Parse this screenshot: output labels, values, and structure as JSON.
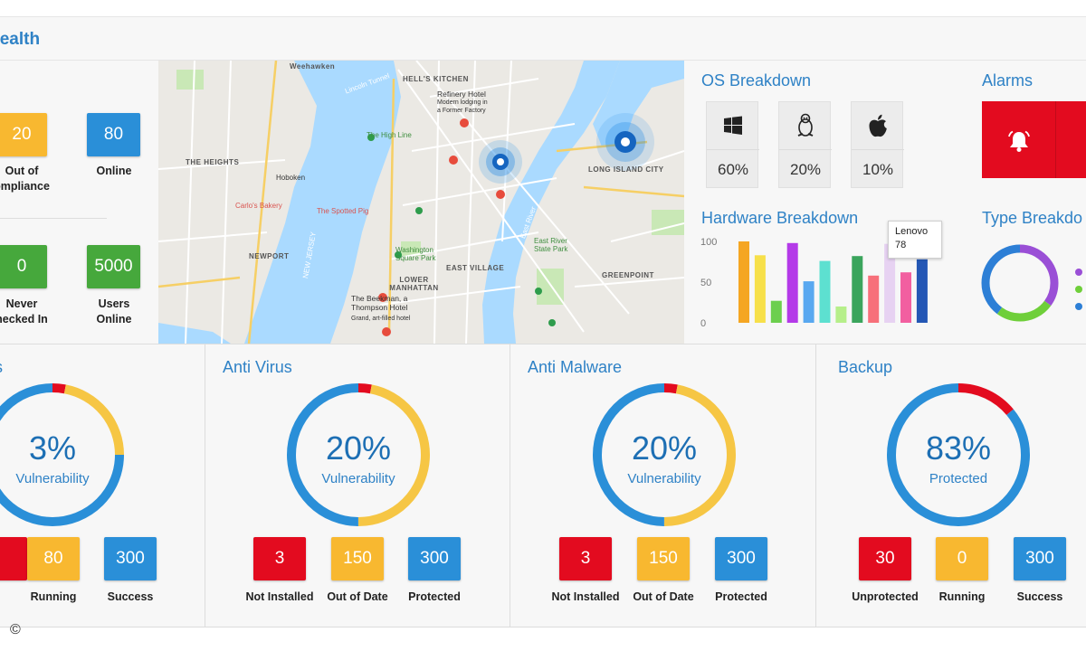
{
  "header": {
    "title": "Health"
  },
  "status": {
    "out_of_compliance": {
      "value": "20",
      "label_line1": "Out of",
      "label_line2": "ompliance"
    },
    "online": {
      "value": "80",
      "label": "Online"
    },
    "never_checked_in": {
      "value": "0",
      "label_line1": "Never",
      "label_line2": "hecked In"
    },
    "users_online": {
      "value": "5000",
      "label_line1": "Users",
      "label_line2": "Online"
    }
  },
  "map": {
    "labels": {
      "weehawken": "Weehawken",
      "hells_kitchen": "HELL'S KITCHEN",
      "refinery_hotel": "Refinery Hotel",
      "refinery_sub1": "Modern lodging in",
      "refinery_sub2": "a Former Factory",
      "the_heights": "THE HEIGHTS",
      "hoboken": "Hoboken",
      "the_high_line": "The High Line",
      "carlos_bakery": "Carlo's Bakery",
      "the_spotted_pig": "The Spotted Pig",
      "long_island_city": "LONG ISLAND CITY",
      "newport": "NEWPORT",
      "washington_square": "Washington Square Park",
      "east_village": "EAST VILLAGE",
      "state_park": "East River State Park",
      "greenpoint": "GREENPOINT",
      "lower_manhattan": "LOWER MANHATTAN",
      "the_beekman": "The Beekman, a Thompson Hotel",
      "beekman_sub": "Grand, art-filled hotel",
      "new_jersey": "NEW JERSEY",
      "lincoln_tunnel": "Lincoln Tunnel",
      "east_river": "East River"
    }
  },
  "os_breakdown": {
    "title": "OS Breakdown",
    "items": [
      {
        "icon": "windows-icon",
        "percent": "60%"
      },
      {
        "icon": "linux-icon",
        "percent": "20%"
      },
      {
        "icon": "apple-icon",
        "percent": "10%"
      }
    ]
  },
  "alarms": {
    "title": "Alarms",
    "icon": "bell-icon"
  },
  "hardware_breakdown": {
    "title": "Hardware Breakdown",
    "tooltip": {
      "name": "Lenovo",
      "value": "78"
    }
  },
  "type_breakdown": {
    "title": "Type Breakdo"
  },
  "chart_data": [
    {
      "type": "bar",
      "title": "Hardware Breakdown",
      "ylim": [
        0,
        100
      ],
      "yticks": [
        "100",
        "50",
        "0"
      ],
      "values": [
        100,
        83,
        27,
        98,
        51,
        76,
        20,
        82,
        58,
        97,
        62,
        78
      ],
      "colors": [
        "#f5a623",
        "#f7e04a",
        "#6ccf4e",
        "#b43ae8",
        "#59a8f0",
        "#5de0d0",
        "#b6ef8a",
        "#3ba55d",
        "#f7707a",
        "#e7d2f2",
        "#f25fa0",
        "#2457b5"
      ]
    },
    {
      "type": "pie",
      "title": "Type Breakdown",
      "values": [
        35,
        25,
        40
      ],
      "colors": [
        "#9a4fd6",
        "#6fcf3a",
        "#2d7fd6"
      ]
    }
  ],
  "panels": [
    {
      "title": "s",
      "percent": "3%",
      "subtitle": "Vulnerability",
      "tiles": [
        {
          "value": "",
          "label": "",
          "color": "red"
        },
        {
          "value": "80",
          "label": "Running",
          "color": "yellow"
        },
        {
          "value": "300",
          "label": "Success",
          "color": "blue"
        }
      ]
    },
    {
      "title": "Anti Virus",
      "percent": "20%",
      "subtitle": "Vulnerability",
      "tiles": [
        {
          "value": "3",
          "label": "Not Installed",
          "color": "red"
        },
        {
          "value": "150",
          "label": "Out of Date",
          "color": "yellow"
        },
        {
          "value": "300",
          "label": "Protected",
          "color": "blue"
        }
      ]
    },
    {
      "title": "Anti Malware",
      "percent": "20%",
      "subtitle": "Vulnerability",
      "tiles": [
        {
          "value": "3",
          "label": "Not Installed",
          "color": "red"
        },
        {
          "value": "150",
          "label": "Out of Date",
          "color": "yellow"
        },
        {
          "value": "300",
          "label": "Protected",
          "color": "blue"
        }
      ]
    },
    {
      "title": "Backup",
      "percent": "83%",
      "subtitle": "Protected",
      "tiles": [
        {
          "value": "30",
          "label": "Unprotected",
          "color": "red"
        },
        {
          "value": "0",
          "label": "Running",
          "color": "yellow"
        },
        {
          "value": "300",
          "label": "Success",
          "color": "blue"
        }
      ]
    }
  ],
  "footer": {
    "copyright": "©"
  }
}
